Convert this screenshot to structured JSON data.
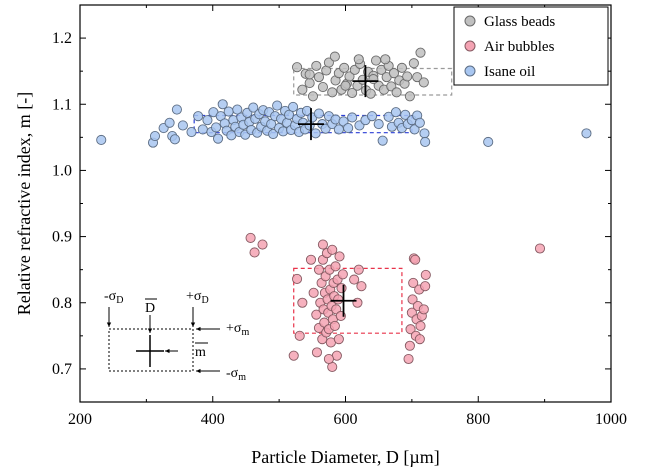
{
  "chart_data": {
    "type": "scatter",
    "title": "",
    "xlabel": "Particle Diameter, D [µm]",
    "ylabel": "Relative refractive index, m [-]",
    "xlim": [
      200,
      1000
    ],
    "ylim": [
      0.65,
      1.25
    ],
    "xticks": [
      200,
      400,
      600,
      800,
      1000
    ],
    "yticks": [
      0.7,
      0.8,
      0.9,
      1.0,
      1.1,
      1.2
    ],
    "grid": false,
    "legend_position": "top-right",
    "series": [
      {
        "name": "Glass beads",
        "color": "#c0c0c0",
        "marker": "circle",
        "mean": {
          "x": 630,
          "y": 1.135
        },
        "std_box": {
          "x": [
            522,
            760
          ],
          "y": [
            1.114,
            1.154
          ]
        },
        "points": [
          [
            527,
            1.156
          ],
          [
            535,
            1.122
          ],
          [
            540,
            1.146
          ],
          [
            546,
            1.132
          ],
          [
            551,
            1.112
          ],
          [
            556,
            1.158
          ],
          [
            560,
            1.141
          ],
          [
            566,
            1.126
          ],
          [
            571,
            1.151
          ],
          [
            575,
            1.163
          ],
          [
            580,
            1.118
          ],
          [
            585,
            1.136
          ],
          [
            590,
            1.147
          ],
          [
            594,
            1.122
          ],
          [
            598,
            1.155
          ],
          [
            602,
            1.131
          ],
          [
            606,
            1.142
          ],
          [
            610,
            1.117
          ],
          [
            614,
            1.152
          ],
          [
            618,
            1.128
          ],
          [
            622,
            1.161
          ],
          [
            626,
            1.137
          ],
          [
            631,
            1.121
          ],
          [
            634,
            1.149
          ],
          [
            638,
            1.116
          ],
          [
            642,
            1.143
          ],
          [
            646,
            1.166
          ],
          [
            650,
            1.128
          ],
          [
            654,
            1.152
          ],
          [
            658,
            1.122
          ],
          [
            662,
            1.141
          ],
          [
            665,
            1.158
          ],
          [
            669,
            1.127
          ],
          [
            673,
            1.147
          ],
          [
            677,
            1.118
          ],
          [
            681,
            1.136
          ],
          [
            685,
            1.155
          ],
          [
            689,
            1.131
          ],
          [
            693,
            1.142
          ],
          [
            697,
            1.112
          ],
          [
            703,
            1.162
          ],
          [
            708,
            1.141
          ],
          [
            713,
            1.178
          ],
          [
            718,
            1.133
          ],
          [
            584,
            1.172
          ],
          [
            620,
            1.168
          ],
          [
            660,
            1.168
          ],
          [
            546,
            1.145
          ],
          [
            600,
            1.128
          ],
          [
            642,
            1.138
          ]
        ]
      },
      {
        "name": "Air bubbles",
        "color": "#f4a3b3",
        "marker": "circle",
        "mean": {
          "x": 597,
          "y": 0.803
        },
        "std_box": {
          "x": [
            522,
            685
          ],
          "y": [
            0.754,
            0.852
          ]
        },
        "points": [
          [
            457,
            0.898
          ],
          [
            463,
            0.876
          ],
          [
            475,
            0.888
          ],
          [
            522,
            0.72
          ],
          [
            527,
            0.836
          ],
          [
            531,
            0.75
          ],
          [
            535,
            0.8
          ],
          [
            548,
            0.865
          ],
          [
            552,
            0.815
          ],
          [
            556,
            0.782
          ],
          [
            557,
            0.725
          ],
          [
            560,
            0.762
          ],
          [
            560,
            0.85
          ],
          [
            562,
            0.8
          ],
          [
            564,
            0.83
          ],
          [
            565,
            0.745
          ],
          [
            566,
            0.865
          ],
          [
            567,
            0.79
          ],
          [
            568,
            0.77
          ],
          [
            569,
            0.815
          ],
          [
            570,
            0.84
          ],
          [
            571,
            0.755
          ],
          [
            572,
            0.875
          ],
          [
            573,
            0.805
          ],
          [
            574,
            0.785
          ],
          [
            575,
            0.76
          ],
          [
            576,
            0.85
          ],
          [
            577,
            0.82
          ],
          [
            578,
            0.74
          ],
          [
            579,
            0.795
          ],
          [
            580,
            0.88
          ],
          [
            581,
            0.775
          ],
          [
            582,
            0.83
          ],
          [
            583,
            0.81
          ],
          [
            584,
            0.765
          ],
          [
            585,
            0.855
          ],
          [
            586,
            0.79
          ],
          [
            587,
            0.72
          ],
          [
            588,
            0.835
          ],
          [
            589,
            0.805
          ],
          [
            590,
            0.745
          ],
          [
            591,
            0.87
          ],
          [
            593,
            0.78
          ],
          [
            594,
            0.822
          ],
          [
            596,
            0.843
          ],
          [
            580,
            0.703
          ],
          [
            575,
            0.715
          ],
          [
            566,
            0.888
          ],
          [
            613,
            0.835
          ],
          [
            618,
            0.8
          ],
          [
            620,
            0.85
          ],
          [
            624,
            0.825
          ],
          [
            695,
            0.715
          ],
          [
            697,
            0.735
          ],
          [
            698,
            0.76
          ],
          [
            700,
            0.785
          ],
          [
            701,
            0.805
          ],
          [
            702,
            0.83
          ],
          [
            703,
            0.867
          ],
          [
            705,
            0.865
          ],
          [
            706,
            0.75
          ],
          [
            707,
            0.775
          ],
          [
            709,
            0.795
          ],
          [
            711,
            0.82
          ],
          [
            712,
            0.745
          ],
          [
            713,
            0.765
          ],
          [
            715,
            0.78
          ],
          [
            718,
            0.79
          ],
          [
            720,
            0.825
          ],
          [
            721,
            0.842
          ],
          [
            893,
            0.882
          ]
        ]
      },
      {
        "name": "Isane oil",
        "color": "#a8c6f0",
        "marker": "circle",
        "mean": {
          "x": 548,
          "y": 1.07
        },
        "std_box": {
          "x": [
            372,
            700
          ],
          "y": [
            1.057,
            1.083
          ]
        },
        "points": [
          [
            232,
            1.046
          ],
          [
            310,
            1.042
          ],
          [
            313,
            1.052
          ],
          [
            326,
            1.064
          ],
          [
            335,
            1.072
          ],
          [
            339,
            1.052
          ],
          [
            343,
            1.047
          ],
          [
            346,
            1.092
          ],
          [
            355,
            1.068
          ],
          [
            368,
            1.058
          ],
          [
            378,
            1.082
          ],
          [
            385,
            1.062
          ],
          [
            392,
            1.076
          ],
          [
            398,
            1.058
          ],
          [
            401,
            1.088
          ],
          [
            405,
            1.065
          ],
          [
            408,
            1.048
          ],
          [
            412,
            1.082
          ],
          [
            415,
            1.1
          ],
          [
            418,
            1.071
          ],
          [
            421,
            1.06
          ],
          [
            424,
            1.089
          ],
          [
            428,
            1.053
          ],
          [
            431,
            1.076
          ],
          [
            434,
            1.066
          ],
          [
            437,
            1.092
          ],
          [
            440,
            1.058
          ],
          [
            443,
            1.08
          ],
          [
            446,
            1.069
          ],
          [
            449,
            1.054
          ],
          [
            452,
            1.087
          ],
          [
            455,
            1.073
          ],
          [
            458,
            1.061
          ],
          [
            461,
            1.095
          ],
          [
            464,
            1.078
          ],
          [
            467,
            1.057
          ],
          [
            470,
            1.085
          ],
          [
            473,
            1.066
          ],
          [
            476,
            1.091
          ],
          [
            479,
            1.074
          ],
          [
            482,
            1.06
          ],
          [
            485,
            1.088
          ],
          [
            488,
            1.07
          ],
          [
            491,
            1.055
          ],
          [
            494,
            1.082
          ],
          [
            497,
            1.098
          ],
          [
            500,
            1.064
          ],
          [
            503,
            1.078
          ],
          [
            506,
            1.059
          ],
          [
            509,
            1.09
          ],
          [
            512,
            1.072
          ],
          [
            515,
            1.084
          ],
          [
            518,
            1.061
          ],
          [
            521,
            1.096
          ],
          [
            524,
            1.068
          ],
          [
            527,
            1.078
          ],
          [
            530,
            1.058
          ],
          [
            533,
            1.087
          ],
          [
            536,
            1.072
          ],
          [
            539,
            1.062
          ],
          [
            542,
            1.09
          ],
          [
            546,
            1.068
          ],
          [
            550,
            1.08
          ],
          [
            555,
            1.056
          ],
          [
            560,
            1.086
          ],
          [
            565,
            1.07
          ],
          [
            570,
            1.063
          ],
          [
            575,
            1.082
          ],
          [
            580,
            1.07
          ],
          [
            585,
            1.077
          ],
          [
            590,
            1.062
          ],
          [
            597,
            1.074
          ],
          [
            604,
            1.064
          ],
          [
            610,
            1.08
          ],
          [
            621,
            1.068
          ],
          [
            630,
            1.076
          ],
          [
            640,
            1.082
          ],
          [
            650,
            1.07
          ],
          [
            656,
            1.045
          ],
          [
            665,
            1.081
          ],
          [
            670,
            1.066
          ],
          [
            676,
            1.088
          ],
          [
            680,
            1.072
          ],
          [
            685,
            1.064
          ],
          [
            690,
            1.084
          ],
          [
            694,
            1.07
          ],
          [
            700,
            1.076
          ],
          [
            704,
            1.062
          ],
          [
            708,
            1.083
          ],
          [
            712,
            1.072
          ],
          [
            719,
            1.056
          ],
          [
            720,
            1.043
          ],
          [
            815,
            1.043
          ],
          [
            963,
            1.056
          ]
        ]
      }
    ],
    "inset": {
      "minus_sigma_d": "-σ",
      "plus_sigma_d": "+σ",
      "sub_d": "D",
      "d_bar": "D",
      "plus_sigma_m": "+σ",
      "minus_sigma_m": "-σ",
      "sub_m": "m",
      "m_bar": "m"
    }
  }
}
